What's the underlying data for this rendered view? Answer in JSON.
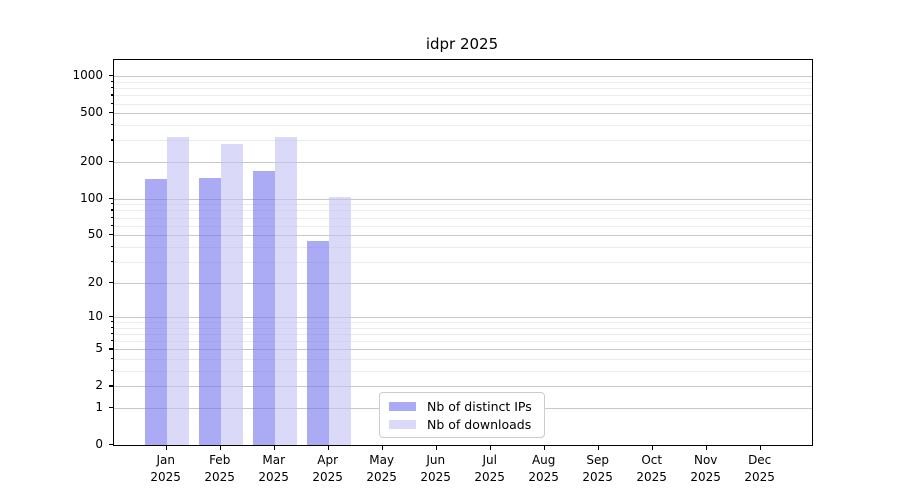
{
  "chart_data": {
    "type": "bar",
    "title": "idpr 2025",
    "categories": [
      "Jan 2025",
      "Feb 2025",
      "Mar 2025",
      "Apr 2025",
      "May 2025",
      "Jun 2025",
      "Jul 2025",
      "Aug 2025",
      "Sep 2025",
      "Oct 2025",
      "Nov 2025",
      "Dec 2025"
    ],
    "x_tick_month_line": [
      "Jan",
      "Feb",
      "Mar",
      "Apr",
      "May",
      "Jun",
      "Jul",
      "Aug",
      "Sep",
      "Oct",
      "Nov",
      "Dec"
    ],
    "x_tick_year_line": "2025",
    "series": [
      {
        "name": "Nb of distinct IPs",
        "color": "#7171ee",
        "opacity": 0.6,
        "values": [
          145,
          148,
          170,
          45,
          0,
          0,
          0,
          0,
          0,
          0,
          0,
          0
        ]
      },
      {
        "name": "Nb of downloads",
        "color": "#c2c2f4",
        "opacity": 0.6,
        "values": [
          320,
          280,
          320,
          103,
          0,
          0,
          0,
          0,
          0,
          0,
          0,
          0
        ]
      }
    ],
    "yscale": "log1p",
    "ylim": [
      0,
      1360
    ],
    "ytick_values": [
      0,
      1,
      2,
      5,
      10,
      20,
      50,
      100,
      200,
      500,
      1000
    ],
    "minor_gridline_values": [
      3,
      4,
      6,
      7,
      8,
      9,
      30,
      40,
      60,
      70,
      80,
      90,
      300,
      400,
      600,
      700,
      800,
      900
    ],
    "grid": "on",
    "grid_color_major": "#c8c8c8",
    "grid_color_minor": "#ececec",
    "legend_position": "lower center-left inside axes",
    "xlabel": "",
    "ylabel": ""
  }
}
